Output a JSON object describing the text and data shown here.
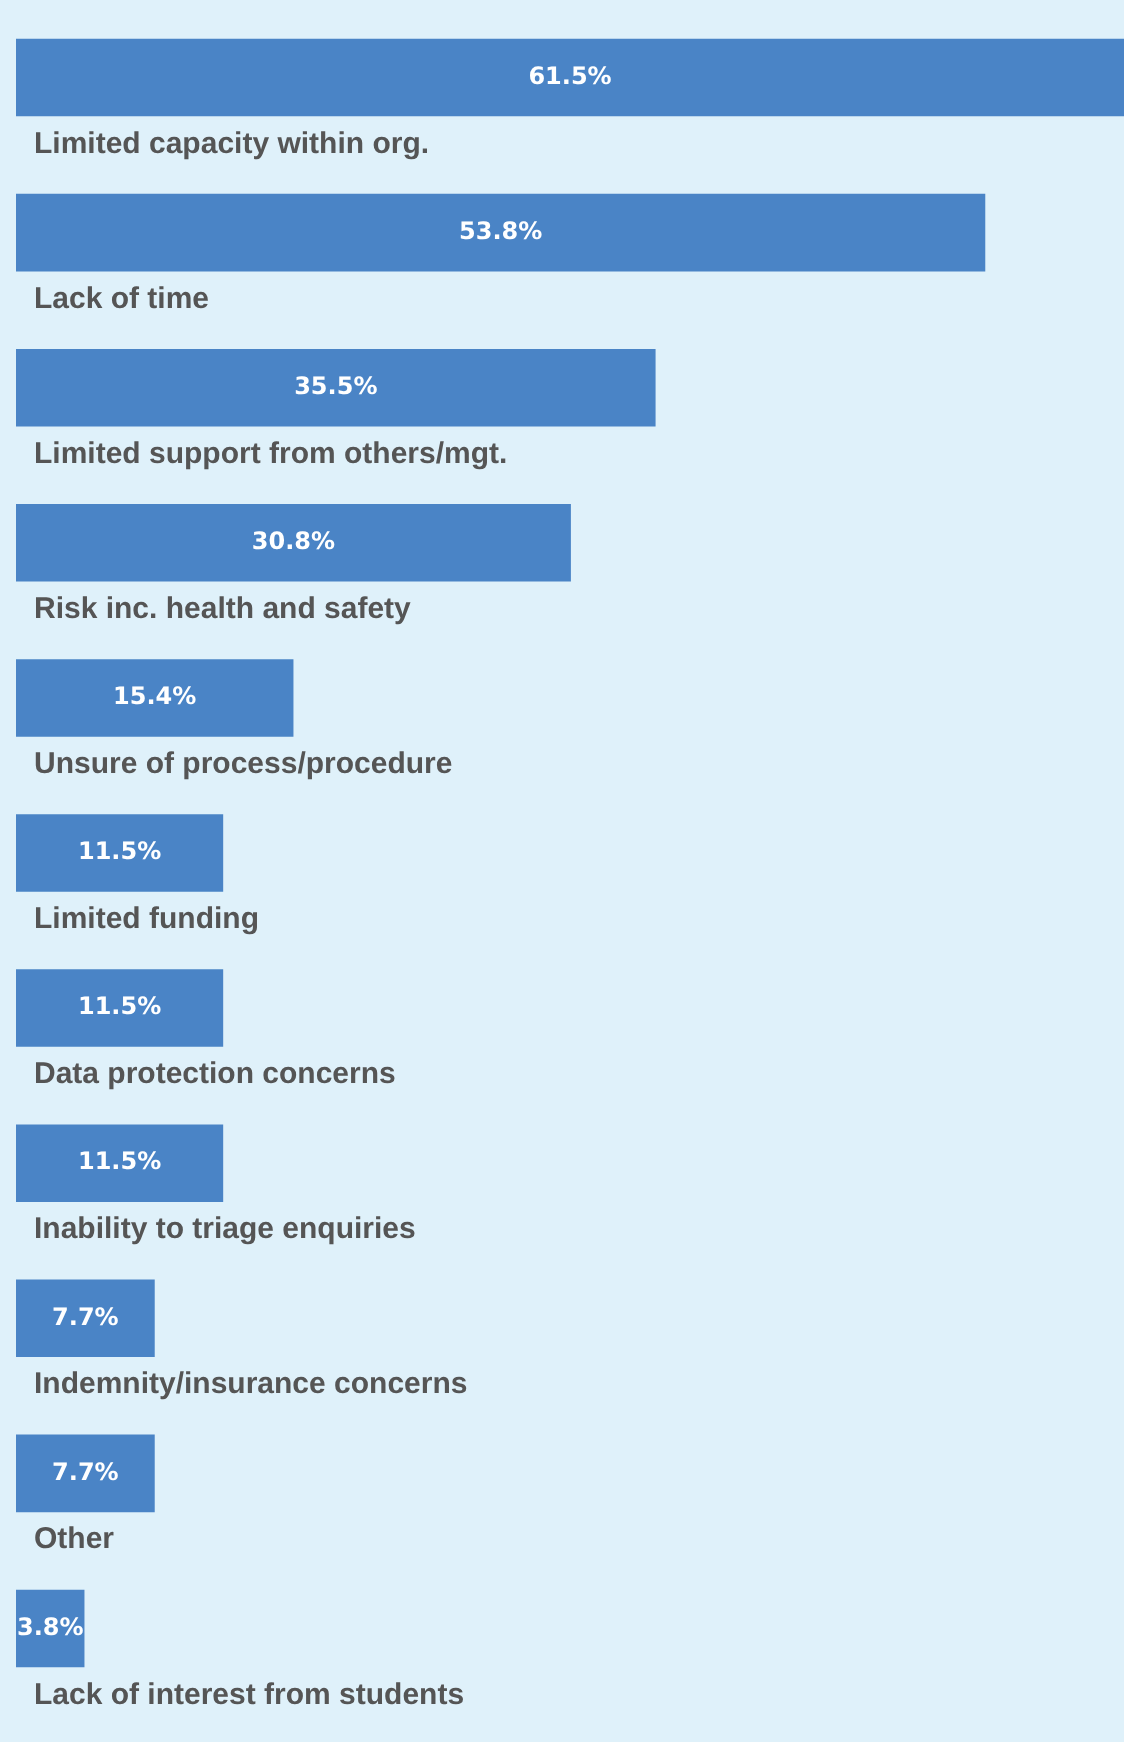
{
  "chart_data": {
    "type": "bar",
    "orientation": "horizontal",
    "data_labels": true,
    "categories": [
      "Limited capacity within org.",
      "Lack of time",
      "Limited support from others/mgt.",
      "Risk inc. health and safety",
      "Unsure of process/procedure",
      "Limited funding",
      "Data protection concerns",
      "Inability to triage enquiries",
      "Indemnity/insurance concerns",
      "Other",
      "Lack of interest from students"
    ],
    "values": [
      61.5,
      53.8,
      35.5,
      30.8,
      15.4,
      11.5,
      11.5,
      11.5,
      7.7,
      7.7,
      3.8
    ],
    "value_labels": [
      "61.5%",
      "53.8%",
      "35.5%",
      "30.8%",
      "15.4%",
      "11.5%",
      "11.5%",
      "11.5%",
      "7.7%",
      "7.7%",
      "3.8%"
    ],
    "color": "#4a84c6"
  }
}
